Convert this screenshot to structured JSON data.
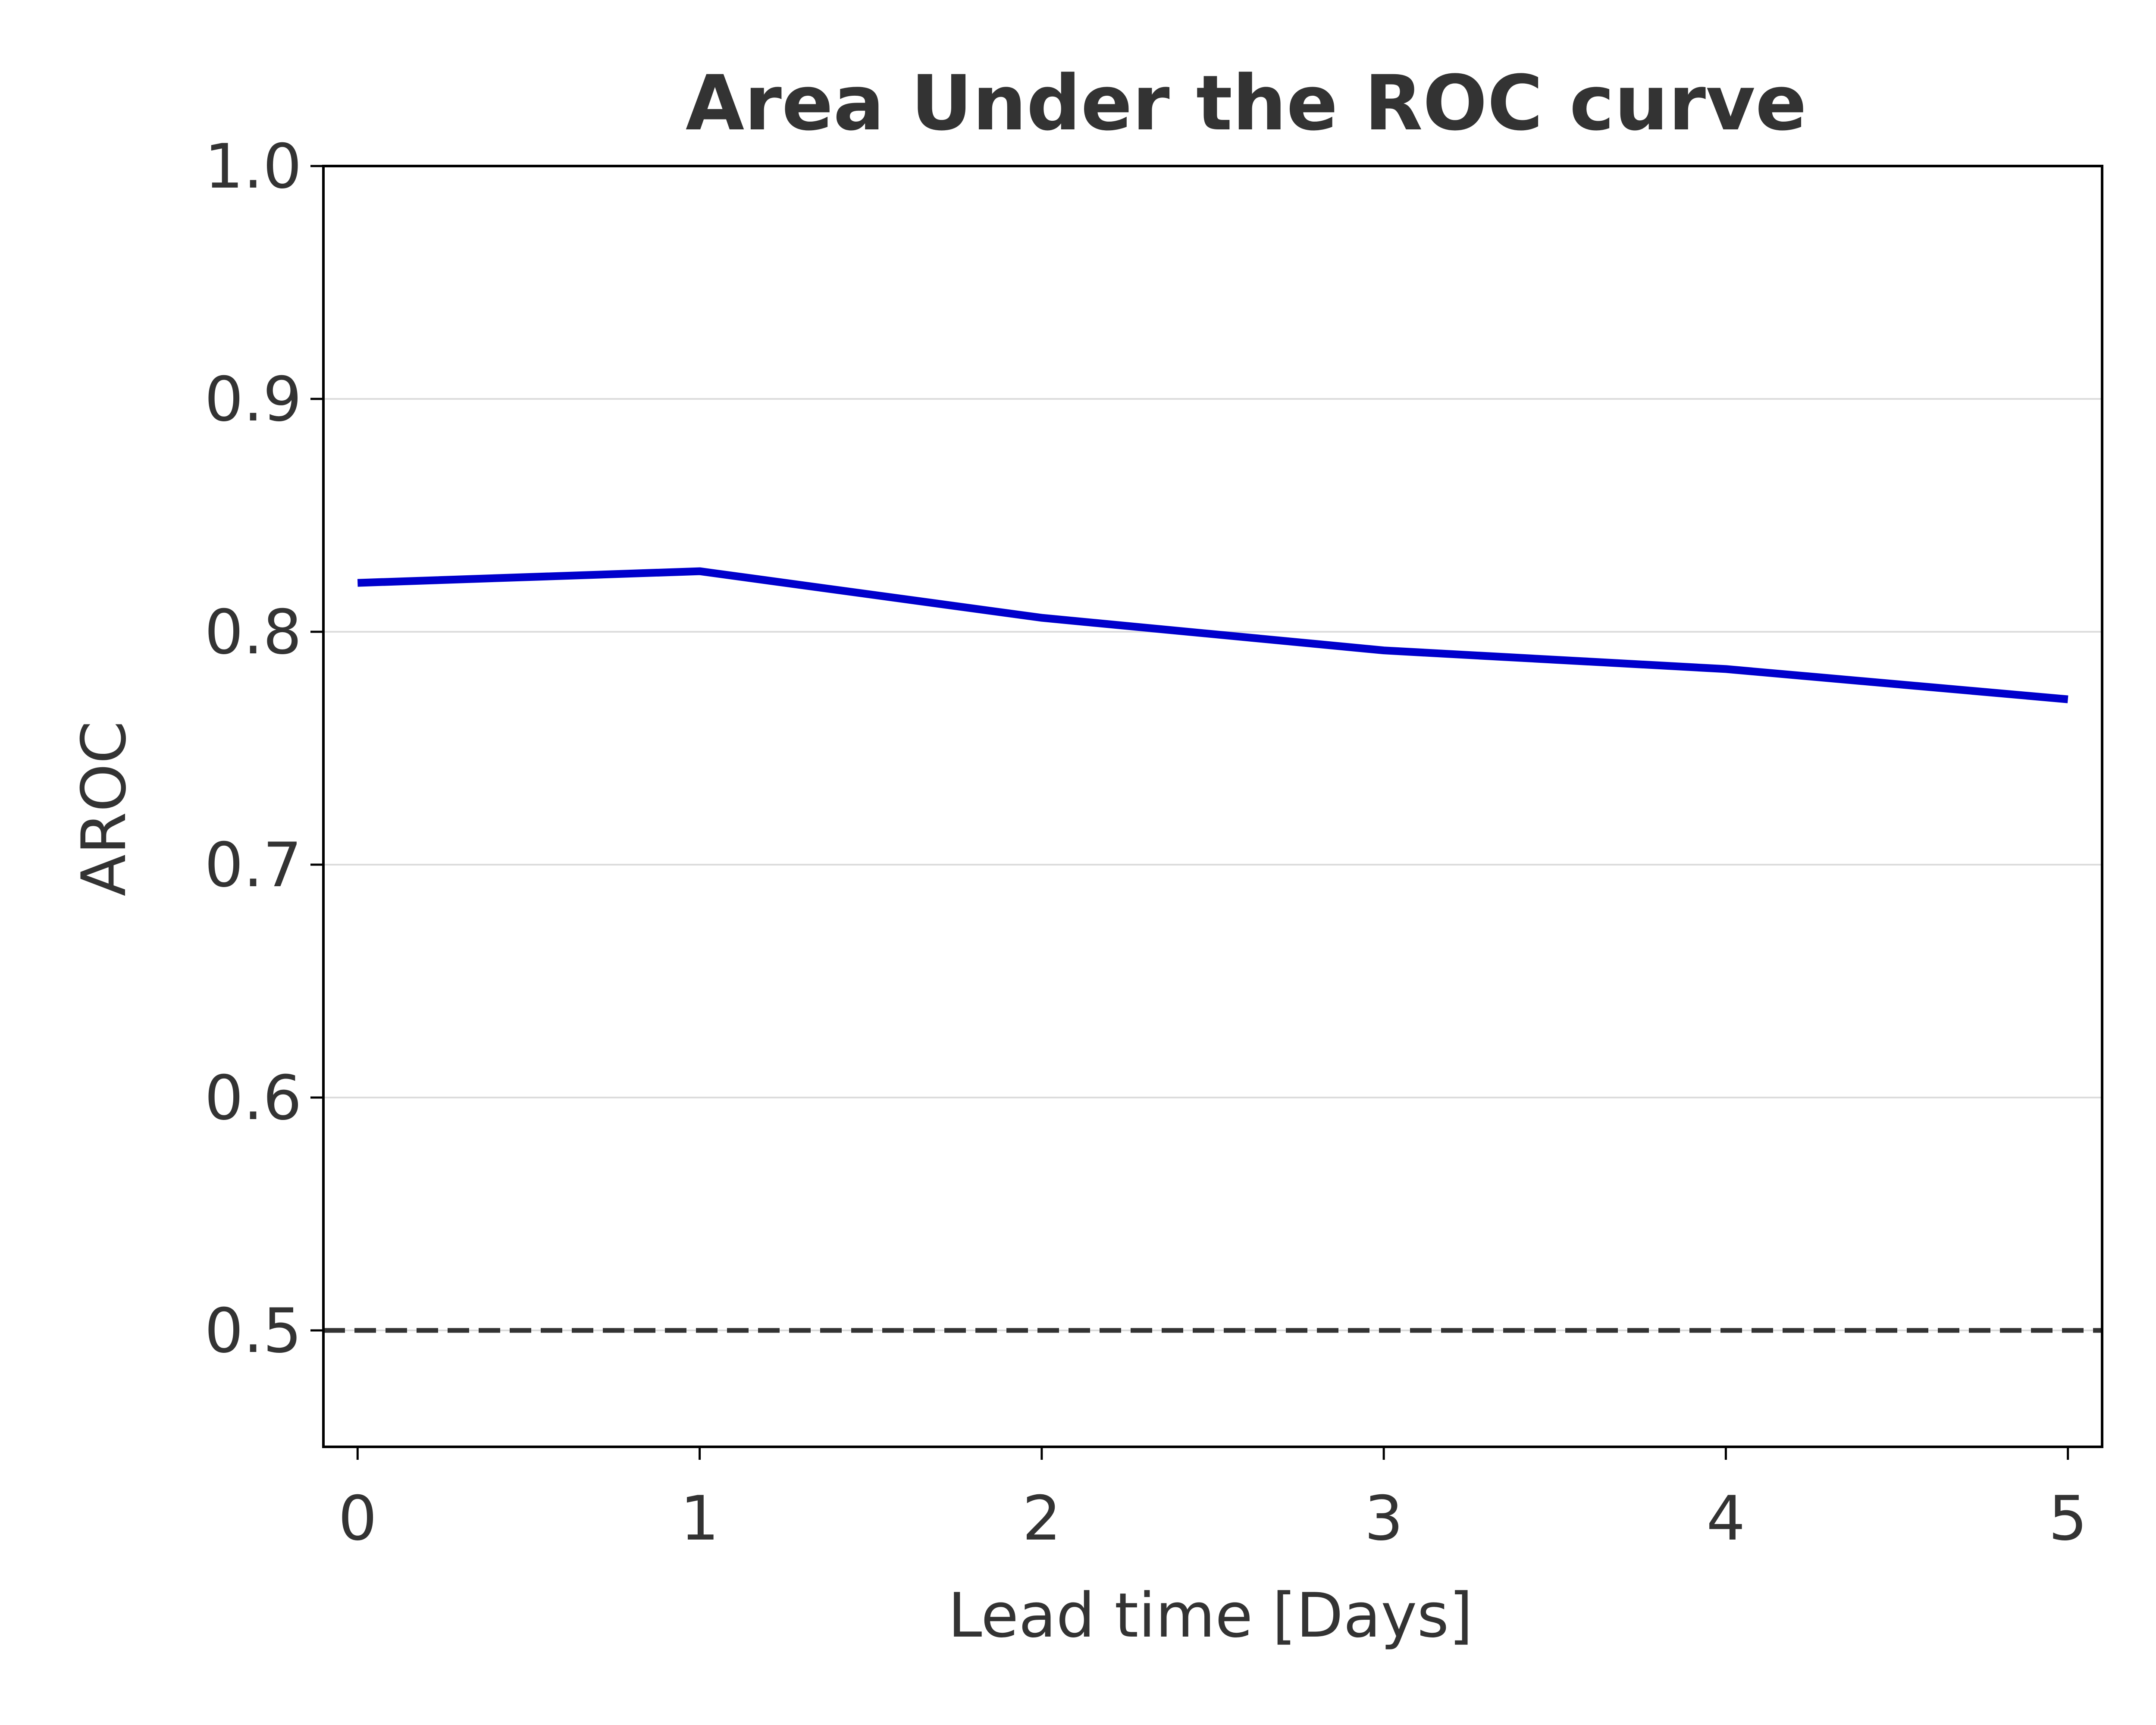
{
  "chart_data": {
    "type": "line",
    "title": "Area Under the ROC curve",
    "xlabel": "Lead time [Days]",
    "ylabel": "AROC",
    "xlim": [
      -0.1,
      5.1
    ],
    "ylim": [
      0.45,
      1.0
    ],
    "xticks": [
      0,
      1,
      2,
      3,
      4,
      5
    ],
    "xtick_labels": [
      "0",
      "1",
      "2",
      "3",
      "4",
      "5"
    ],
    "yticks": [
      0.5,
      0.6,
      0.7,
      0.8,
      0.9,
      1.0
    ],
    "ytick_labels": [
      "0.5",
      "0.6",
      "0.7",
      "0.8",
      "0.9",
      "1.0"
    ],
    "grid": "horizontal",
    "x": [
      0,
      1,
      2,
      3,
      4,
      5
    ],
    "series": [
      {
        "values": [
          0.821,
          0.826,
          0.806,
          0.792,
          0.784,
          0.771
        ],
        "color": "#0000cc"
      }
    ],
    "reference_line": {
      "y": 0.5,
      "style": "dashed",
      "color": "#333333"
    }
  }
}
